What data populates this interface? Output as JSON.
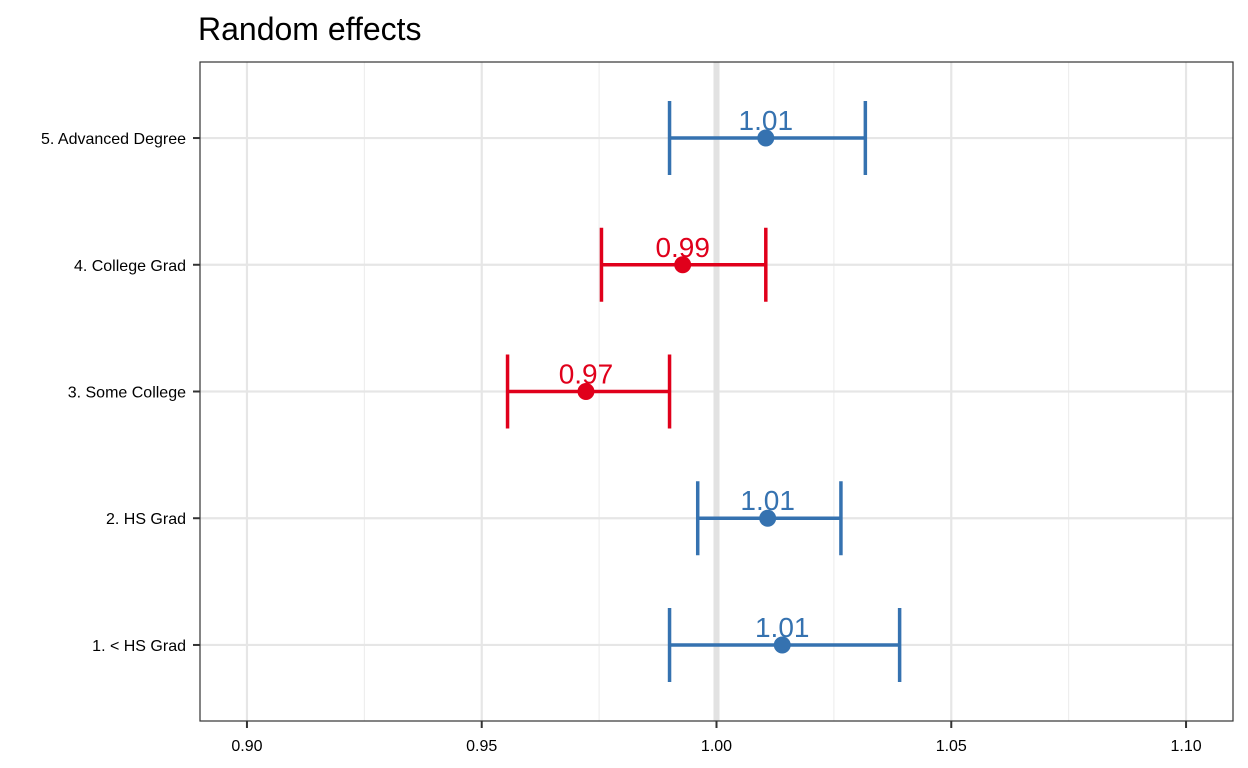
{
  "chart_data": {
    "type": "forest",
    "title": "Random effects",
    "xlabel": "",
    "ylabel": "",
    "xlim": [
      0.89,
      1.11
    ],
    "x_ticks": [
      0.9,
      0.95,
      1.0,
      1.05,
      1.1
    ],
    "x_tick_labels": [
      "0.90",
      "0.95",
      "1.00",
      "1.05",
      "1.10"
    ],
    "x_minor_ticks": [
      0.925,
      0.975,
      1.025,
      1.075
    ],
    "reference_line": 1.0,
    "grid": true,
    "colors": {
      "positive": "#3572B0",
      "negative": "#E0001B"
    },
    "categories": [
      "5. Advanced Degree",
      "4. College Grad",
      "3. Some College",
      "2. HS Grad",
      "1. < HS Grad"
    ],
    "estimates": [
      1.0105,
      0.9928,
      0.9722,
      1.0109,
      1.014
    ],
    "lower": [
      0.99,
      0.9755,
      0.9555,
      0.996,
      0.99
    ],
    "upper": [
      1.0317,
      1.0105,
      0.99,
      1.0265,
      1.039
    ],
    "labels": [
      "1.01",
      "0.99",
      "0.97",
      "1.01",
      "1.01"
    ]
  }
}
